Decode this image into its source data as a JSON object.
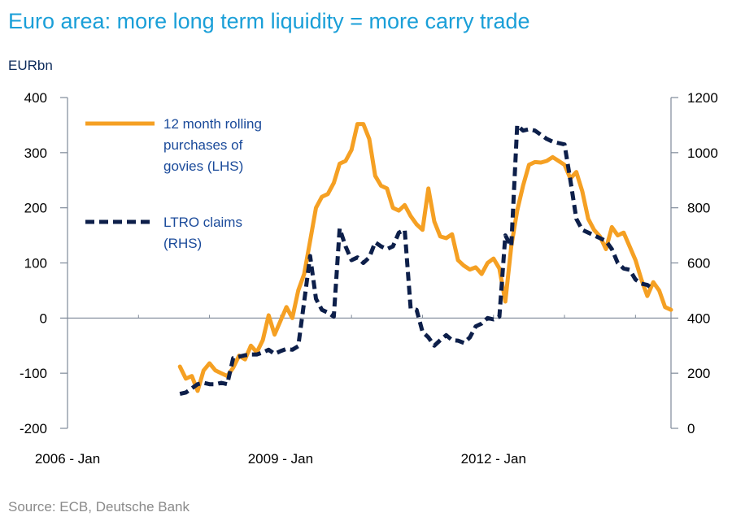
{
  "chart_data": {
    "type": "line",
    "title": "Euro area: more long term liquidity = more carry trade",
    "y_unit_label": "EURbn",
    "source": "Source: ECB, Deutsche Bank",
    "xlim": [
      "2006-01",
      "2014-07"
    ],
    "x_tick_labels": [
      {
        "date": "2006-01",
        "label": "2006 - Jan"
      },
      {
        "date": "2009-01",
        "label": "2009 - Jan"
      },
      {
        "date": "2012-01",
        "label": "2012 - Jan"
      }
    ],
    "y_left": {
      "lim": [
        -200,
        400
      ],
      "ticks": [
        400,
        300,
        200,
        100,
        0,
        -100,
        -200
      ]
    },
    "y_right": {
      "lim": [
        0,
        1200
      ],
      "ticks": [
        1200,
        1000,
        800,
        600,
        400,
        200,
        0
      ]
    },
    "grid": false,
    "legend_position": "top-left",
    "series": [
      {
        "name": "12 month rolling purchases of govies (LHS)",
        "legend_lines": [
          "12 month rolling",
          "purchases of",
          "govies (LHS)"
        ],
        "axis": "left",
        "color": "#f5a023",
        "style": "solid",
        "points": [
          [
            "2007-08",
            -88
          ],
          [
            "2007-09",
            -110
          ],
          [
            "2007-10",
            -105
          ],
          [
            "2007-11",
            -132
          ],
          [
            "2007-12",
            -95
          ],
          [
            "2008-01",
            -82
          ],
          [
            "2008-02",
            -95
          ],
          [
            "2008-03",
            -100
          ],
          [
            "2008-04",
            -105
          ],
          [
            "2008-05",
            -90
          ],
          [
            "2008-06",
            -68
          ],
          [
            "2008-07",
            -75
          ],
          [
            "2008-08",
            -50
          ],
          [
            "2008-09",
            -62
          ],
          [
            "2008-10",
            -40
          ],
          [
            "2008-11",
            5
          ],
          [
            "2008-12",
            -30
          ],
          [
            "2008-13",
            -5
          ],
          [
            "2009-02",
            20
          ],
          [
            "2009-03",
            0
          ],
          [
            "2009-04",
            50
          ],
          [
            "2009-05",
            80
          ],
          [
            "2009-06",
            140
          ],
          [
            "2009-07",
            200
          ],
          [
            "2009-08",
            220
          ],
          [
            "2009-09",
            225
          ],
          [
            "2009-10",
            245
          ],
          [
            "2009-11",
            280
          ],
          [
            "2009-12",
            285
          ],
          [
            "2010-01",
            305
          ],
          [
            "2010-02",
            352
          ],
          [
            "2010-03",
            352
          ],
          [
            "2010-04",
            325
          ],
          [
            "2010-05",
            258
          ],
          [
            "2010-06",
            240
          ],
          [
            "2010-07",
            235
          ],
          [
            "2010-08",
            200
          ],
          [
            "2010-09",
            195
          ],
          [
            "2010-10",
            205
          ],
          [
            "2010-11",
            185
          ],
          [
            "2010-12",
            170
          ],
          [
            "2011-01",
            160
          ],
          [
            "2011-02",
            235
          ],
          [
            "2011-03",
            175
          ],
          [
            "2011-04",
            148
          ],
          [
            "2011-05",
            145
          ],
          [
            "2011-06",
            152
          ],
          [
            "2011-07",
            105
          ],
          [
            "2011-08",
            95
          ],
          [
            "2011-09",
            88
          ],
          [
            "2011-10",
            92
          ],
          [
            "2011-11",
            80
          ],
          [
            "2011-12",
            100
          ],
          [
            "2012-01",
            108
          ],
          [
            "2012-02",
            90
          ],
          [
            "2012-03",
            30
          ],
          [
            "2012-04",
            130
          ],
          [
            "2012-05",
            195
          ],
          [
            "2012-06",
            240
          ],
          [
            "2012-07",
            278
          ],
          [
            "2012-08",
            283
          ],
          [
            "2012-09",
            282
          ],
          [
            "2012-10",
            285
          ],
          [
            "2012-11",
            292
          ],
          [
            "2012-12",
            285
          ],
          [
            "2013-01",
            278
          ],
          [
            "2013-02",
            253
          ],
          [
            "2013-03",
            265
          ],
          [
            "2013-04",
            230
          ],
          [
            "2013-05",
            180
          ],
          [
            "2013-06",
            160
          ],
          [
            "2013-07",
            148
          ],
          [
            "2013-08",
            125
          ],
          [
            "2013-09",
            165
          ],
          [
            "2013-10",
            150
          ],
          [
            "2013-11",
            155
          ],
          [
            "2013-12",
            130
          ],
          [
            "2014-01",
            105
          ],
          [
            "2014-02",
            70
          ],
          [
            "2014-03",
            40
          ],
          [
            "2014-04",
            65
          ],
          [
            "2014-05",
            50
          ],
          [
            "2014-06",
            20
          ],
          [
            "2014-07",
            15
          ]
        ]
      },
      {
        "name": "LTRO claims (RHS)",
        "legend_lines": [
          "LTRO claims",
          "(RHS)"
        ],
        "axis": "right",
        "color": "#0d1f4a",
        "style": "dashed",
        "points": [
          [
            "2007-08",
            125
          ],
          [
            "2007-09",
            130
          ],
          [
            "2007-10",
            145
          ],
          [
            "2007-11",
            160
          ],
          [
            "2007-12",
            165
          ],
          [
            "2008-01",
            160
          ],
          [
            "2008-02",
            160
          ],
          [
            "2008-03",
            165
          ],
          [
            "2008-04",
            160
          ],
          [
            "2008-05",
            255
          ],
          [
            "2008-06",
            260
          ],
          [
            "2008-07",
            265
          ],
          [
            "2008-08",
            268
          ],
          [
            "2008-09",
            268
          ],
          [
            "2008-10",
            275
          ],
          [
            "2008-11",
            285
          ],
          [
            "2008-12",
            270
          ],
          [
            "2009-01",
            280
          ],
          [
            "2009-02",
            288
          ],
          [
            "2009-03",
            285
          ],
          [
            "2009-04",
            298
          ],
          [
            "2009-05",
            460
          ],
          [
            "2009-06",
            625
          ],
          [
            "2009-07",
            470
          ],
          [
            "2009-08",
            430
          ],
          [
            "2009-09",
            420
          ],
          [
            "2009-10",
            405
          ],
          [
            "2009-11",
            725
          ],
          [
            "2009-12",
            660
          ],
          [
            "2010-01",
            610
          ],
          [
            "2010-02",
            620
          ],
          [
            "2010-03",
            600
          ],
          [
            "2010-04",
            620
          ],
          [
            "2010-05",
            675
          ],
          [
            "2010-06",
            660
          ],
          [
            "2010-07",
            650
          ],
          [
            "2010-08",
            660
          ],
          [
            "2010-09",
            710
          ],
          [
            "2010-10",
            720
          ],
          [
            "2010-11",
            435
          ],
          [
            "2010-12",
            430
          ],
          [
            "2011-01",
            350
          ],
          [
            "2011-02",
            330
          ],
          [
            "2011-03",
            300
          ],
          [
            "2011-04",
            320
          ],
          [
            "2011-05",
            338
          ],
          [
            "2011-06",
            320
          ],
          [
            "2011-07",
            318
          ],
          [
            "2011-08",
            310
          ],
          [
            "2011-09",
            330
          ],
          [
            "2011-10",
            370
          ],
          [
            "2011-11",
            380
          ],
          [
            "2011-12",
            400
          ],
          [
            "2012-01",
            395
          ],
          [
            "2012-02",
            405
          ],
          [
            "2012-03",
            700
          ],
          [
            "2012-04",
            660
          ],
          [
            "2012-05",
            1100
          ],
          [
            "2012-06",
            1080
          ],
          [
            "2012-07",
            1085
          ],
          [
            "2012-08",
            1080
          ],
          [
            "2012-09",
            1065
          ],
          [
            "2012-10",
            1050
          ],
          [
            "2012-11",
            1040
          ],
          [
            "2012-12",
            1035
          ],
          [
            "2013-01",
            1030
          ],
          [
            "2013-02",
            900
          ],
          [
            "2013-03",
            760
          ],
          [
            "2013-04",
            720
          ],
          [
            "2013-05",
            710
          ],
          [
            "2013-06",
            700
          ],
          [
            "2013-07",
            690
          ],
          [
            "2013-08",
            680
          ],
          [
            "2013-09",
            650
          ],
          [
            "2013-10",
            600
          ],
          [
            "2013-11",
            580
          ],
          [
            "2013-12",
            575
          ],
          [
            "2014-01",
            540
          ],
          [
            "2014-02",
            525
          ],
          [
            "2014-03",
            520
          ],
          [
            "2014-04",
            505
          ]
        ]
      }
    ]
  },
  "colors": {
    "title": "#1a9fd8",
    "axis": "#7f8a99",
    "legend_text": "#1a4a9a",
    "source": "#8a8a8a"
  }
}
